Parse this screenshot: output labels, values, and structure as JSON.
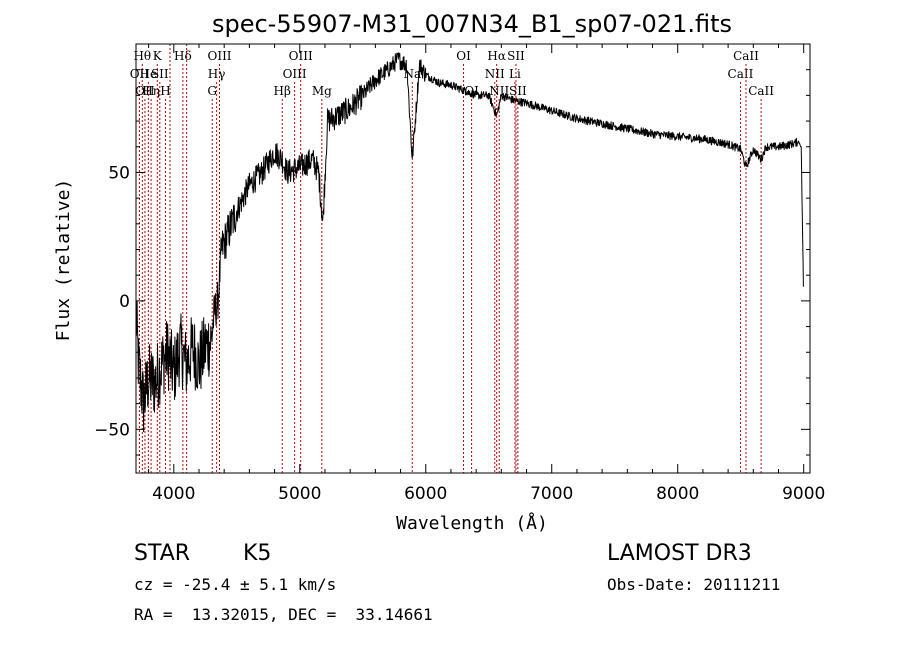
{
  "chart_data": {
    "type": "line",
    "title": "spec-55907-M31_007N34_B1_sp07-021.fits",
    "xlabel": "Wavelength (Å)",
    "ylabel": "Flux (relative)",
    "xlim": [
      3700,
      9050
    ],
    "ylim": [
      -67,
      100
    ],
    "xticks": [
      4000,
      5000,
      6000,
      7000,
      8000,
      9000
    ],
    "yticks": [
      -50,
      0,
      50
    ],
    "spectrum_knots": {
      "x": [
        3700,
        3720,
        3760,
        3800,
        3850,
        3900,
        3950,
        4000,
        4050,
        4100,
        4150,
        4200,
        4250,
        4300,
        4320,
        4350,
        4380,
        4420,
        4500,
        4600,
        4700,
        4800,
        4860,
        4900,
        5000,
        5100,
        5150,
        5183,
        5220,
        5300,
        5400,
        5500,
        5600,
        5700,
        5780,
        5850,
        5893,
        5950,
        6000,
        6100,
        6200,
        6300,
        6400,
        6500,
        6563,
        6600,
        6700,
        6800,
        7000,
        7200,
        7500,
        7800,
        8000,
        8200,
        8400,
        8500,
        8542,
        8600,
        8662,
        8700,
        8800,
        8900,
        8960,
        8980,
        8990,
        9000
      ],
      "y": [
        -5,
        -25,
        -40,
        -30,
        -32,
        -25,
        -20,
        -28,
        -18,
        -25,
        -18,
        -25,
        -18,
        -15,
        -5,
        0,
        20,
        25,
        35,
        45,
        50,
        58,
        55,
        50,
        52,
        55,
        50,
        30,
        70,
        72,
        75,
        80,
        86,
        90,
        94,
        92,
        55,
        92,
        88,
        85,
        84,
        82,
        80,
        80,
        72,
        80,
        78,
        77,
        74,
        71,
        68,
        65,
        64,
        63,
        61,
        59,
        52,
        59,
        55,
        60,
        60,
        61,
        62,
        60,
        30,
        -1
      ]
    },
    "line_markers": [
      {
        "wavelength": 3727,
        "labels": [
          "OII"
        ],
        "row": 1
      },
      {
        "wavelength": 3750,
        "labels": [
          "Hθ"
        ],
        "row": 0
      },
      {
        "wavelength": 3771,
        "labels": [
          "OII"
        ],
        "row": 2
      },
      {
        "wavelength": 3798,
        "labels": [
          "He"
        ],
        "row": 1
      },
      {
        "wavelength": 3820,
        "labels": [
          "Hη"
        ],
        "row": 2
      },
      {
        "wavelength": 3869,
        "labels": [
          "K"
        ],
        "row": 0
      },
      {
        "wavelength": 3889,
        "labels": [
          "SII"
        ],
        "row": 1
      },
      {
        "wavelength": 3934,
        "labels": [
          "H"
        ],
        "row": 2
      },
      {
        "wavelength": 3970,
        "labels": [],
        "row": 0
      },
      {
        "wavelength": 4072,
        "labels": [
          "Hδ"
        ],
        "row": 0
      },
      {
        "wavelength": 4102,
        "labels": [],
        "row": 0
      },
      {
        "wavelength": 4305,
        "labels": [
          "G"
        ],
        "row": 2
      },
      {
        "wavelength": 4340,
        "labels": [
          "Hγ"
        ],
        "row": 1
      },
      {
        "wavelength": 4363,
        "labels": [
          "OIII"
        ],
        "row": 0
      },
      {
        "wavelength": 4861,
        "labels": [
          "Hβ"
        ],
        "row": 2
      },
      {
        "wavelength": 4959,
        "labels": [
          "OIII"
        ],
        "row": 1
      },
      {
        "wavelength": 5007,
        "labels": [
          "OIII"
        ],
        "row": 0
      },
      {
        "wavelength": 5175,
        "labels": [
          "Mg"
        ],
        "row": 2
      },
      {
        "wavelength": 5893,
        "labels": [
          "Na"
        ],
        "row": 1
      },
      {
        "wavelength": 6300,
        "labels": [
          "OI"
        ],
        "row": 0
      },
      {
        "wavelength": 6364,
        "labels": [
          "OI"
        ],
        "row": 2
      },
      {
        "wavelength": 6548,
        "labels": [
          "NII"
        ],
        "row": 1
      },
      {
        "wavelength": 6563,
        "labels": [
          "Hα"
        ],
        "row": 0
      },
      {
        "wavelength": 6583,
        "labels": [
          "NII"
        ],
        "row": 2
      },
      {
        "wavelength": 6708,
        "labels": [
          "Li"
        ],
        "row": 1
      },
      {
        "wavelength": 6716,
        "labels": [
          "SII"
        ],
        "row": 0
      },
      {
        "wavelength": 6731,
        "labels": [
          "SII"
        ],
        "row": 2
      },
      {
        "wavelength": 8498,
        "labels": [
          "CaII"
        ],
        "row": 1
      },
      {
        "wavelength": 8542,
        "labels": [
          "CaII"
        ],
        "row": 0
      },
      {
        "wavelength": 8662,
        "labels": [
          "CaII"
        ],
        "row": 2
      }
    ]
  },
  "info": {
    "object_class": "STAR",
    "subclass": "K5",
    "survey": "LAMOST DR3",
    "redshift": "cz = -25.4 ± 5.1 km/s",
    "obs_date": "Obs-Date: 20111211",
    "coords": "RA =  13.32015, DEC =  33.14661"
  }
}
